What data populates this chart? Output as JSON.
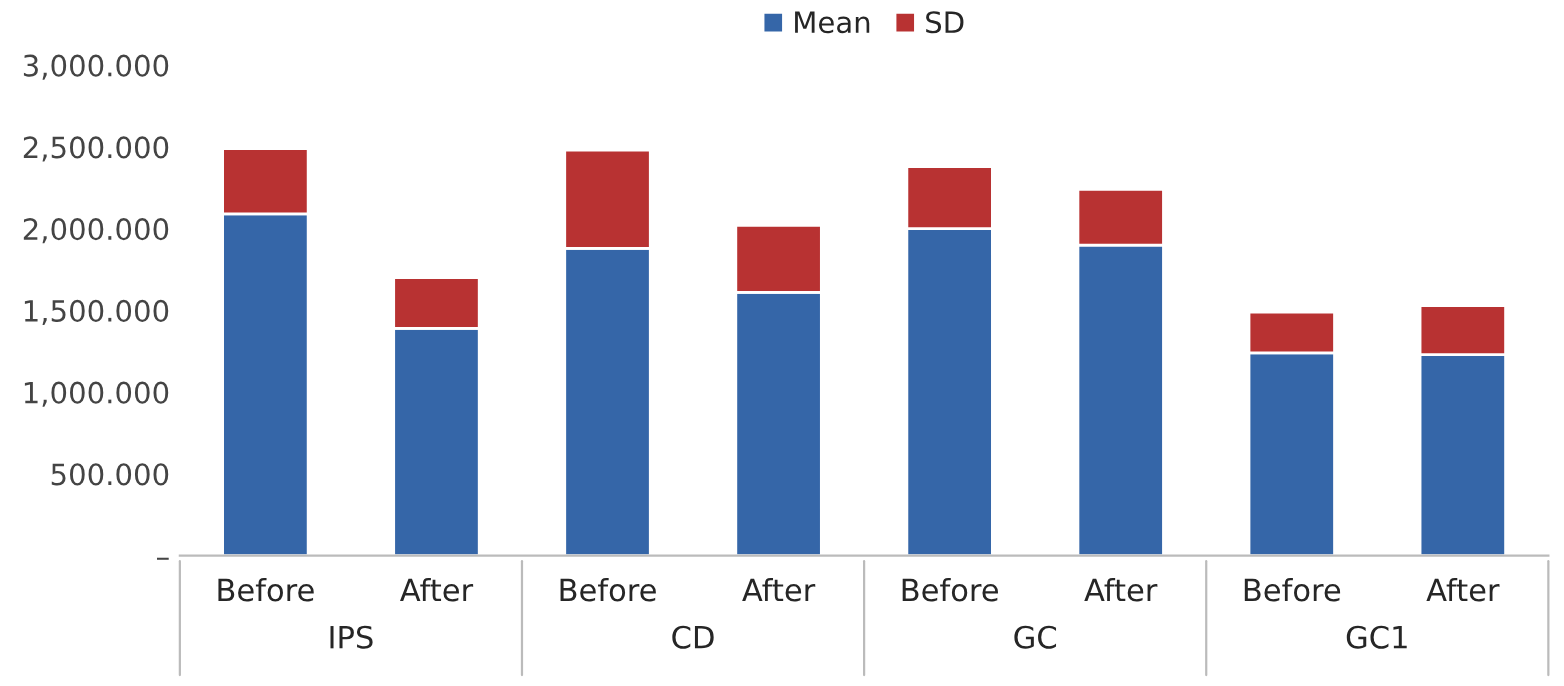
{
  "chart_data": {
    "type": "bar",
    "stacked": true,
    "categories": [
      "Before",
      "After",
      "Before",
      "After",
      "Before",
      "After",
      "Before",
      "After"
    ],
    "series": [
      {
        "name": "Mean",
        "color": "#3566a8",
        "values": [
          2090,
          1390,
          1880,
          1610,
          2000,
          1900,
          1240,
          1230
        ]
      },
      {
        "name": "SD",
        "color": "#b83232",
        "values": [
          400,
          310,
          600,
          410,
          380,
          340,
          250,
          300
        ]
      }
    ],
    "ylim": [
      0,
      3000
    ],
    "yticks": [
      {
        "value": 0,
        "label": "–"
      },
      {
        "value": 500,
        "label": "500.000"
      },
      {
        "value": 1000,
        "label": "1,000.000"
      },
      {
        "value": 1500,
        "label": "1,500.000"
      },
      {
        "value": 2000,
        "label": "2,000.000"
      },
      {
        "value": 2500,
        "label": "2,500.000"
      },
      {
        "value": 3000,
        "label": "3,000.000"
      }
    ],
    "annotations": [
      "IPS",
      "CD",
      "GC",
      "GC1"
    ],
    "grid": false,
    "legend": "top"
  }
}
